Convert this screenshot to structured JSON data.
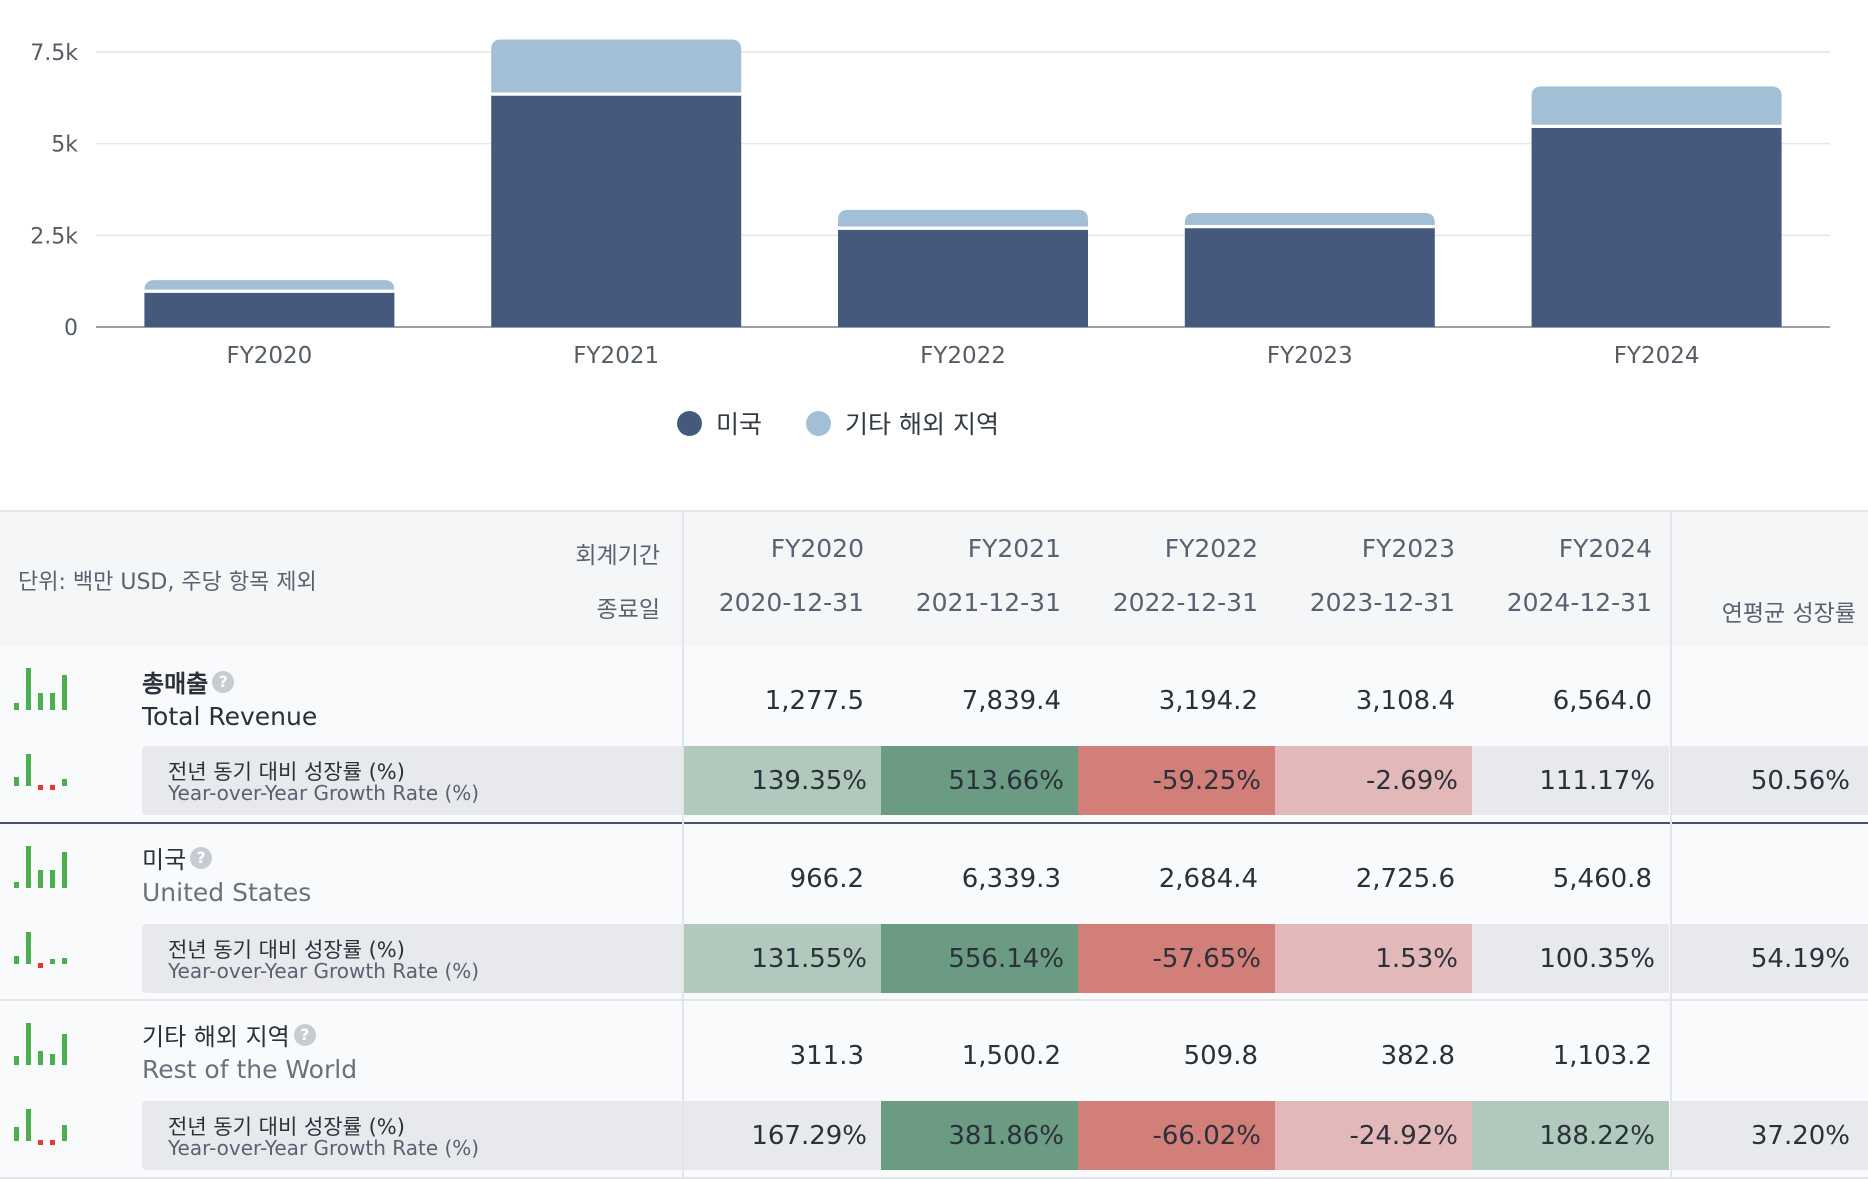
{
  "chart_data": {
    "type": "bar",
    "stacked": true,
    "categories": [
      "FY2020",
      "FY2021",
      "FY2022",
      "FY2023",
      "FY2024"
    ],
    "series": [
      {
        "name": "미국",
        "color": "#45597d",
        "values": [
          966.2,
          6339.3,
          2684.4,
          2725.6,
          5460.8
        ]
      },
      {
        "name": "기타 해외 지역",
        "color": "#a3bfd6",
        "values": [
          311.3,
          1500.2,
          509.8,
          382.8,
          1103.2
        ]
      }
    ],
    "yticks": [
      {
        "value": 0,
        "label": "0"
      },
      {
        "value": 2500,
        "label": "2.5k"
      },
      {
        "value": 5000,
        "label": "5k"
      },
      {
        "value": 7500,
        "label": "7.5k"
      }
    ],
    "ylim": [
      0,
      8500
    ],
    "grid": true,
    "legend_position": "bottom-center"
  },
  "table": {
    "unit_note": "단위: 백만 USD, 주당 항목 제외",
    "period_label": "회계기간",
    "end_date_label": "종료일",
    "cagr_label": "연평균 성장률",
    "years": [
      "FY2020",
      "FY2021",
      "FY2022",
      "FY2023",
      "FY2024"
    ],
    "dates": [
      "2020-12-31",
      "2021-12-31",
      "2022-12-31",
      "2023-12-31",
      "2024-12-31"
    ],
    "growth_label_ko": "전년 동기 대비 성장률 (%)",
    "growth_label_en": "Year-over-Year Growth Rate (%)",
    "help_glyph": "?",
    "rows": [
      {
        "name_ko": "총매출",
        "name_en": "Total Revenue",
        "values": [
          "1,277.5",
          "7,839.4",
          "3,194.2",
          "3,108.4",
          "6,564.0"
        ],
        "growth": [
          "139.35%",
          "513.66%",
          "-59.25%",
          "-2.69%",
          "111.17%"
        ],
        "growth_colors": [
          "#b1c8bd",
          "#6b9b82",
          "#d27e79",
          "#e3b8b8",
          "transparent"
        ],
        "cagr": "50.56%",
        "spark_values": [
          1277.5,
          7839.4,
          3194.2,
          3108.4,
          6564.0
        ],
        "spark_growth": [
          139.35,
          513.66,
          -59.25,
          -2.69,
          111.17
        ]
      },
      {
        "name_ko": "미국",
        "name_en": "United States",
        "values": [
          "966.2",
          "6,339.3",
          "2,684.4",
          "2,725.6",
          "5,460.8"
        ],
        "growth": [
          "131.55%",
          "556.14%",
          "-57.65%",
          "1.53%",
          "100.35%"
        ],
        "growth_colors": [
          "#b1c8bd",
          "#6b9b82",
          "#d27e79",
          "#e3b8b8",
          "transparent"
        ],
        "cagr": "54.19%",
        "spark_values": [
          966.2,
          6339.3,
          2684.4,
          2725.6,
          5460.8
        ],
        "spark_growth": [
          131.55,
          556.14,
          -57.65,
          1.53,
          100.35
        ]
      },
      {
        "name_ko": "기타 해외 지역",
        "name_en": "Rest of the World",
        "values": [
          "311.3",
          "1,500.2",
          "509.8",
          "382.8",
          "1,103.2"
        ],
        "growth": [
          "167.29%",
          "381.86%",
          "-66.02%",
          "-24.92%",
          "188.22%"
        ],
        "growth_colors": [
          "transparent",
          "#6b9b82",
          "#d27e79",
          "#e3b8b8",
          "#b1c8bd"
        ],
        "cagr": "37.20%",
        "spark_values": [
          311.3,
          1500.2,
          509.8,
          382.8,
          1103.2
        ],
        "spark_growth": [
          167.29,
          381.86,
          -66.02,
          -24.92,
          188.22
        ]
      }
    ]
  }
}
